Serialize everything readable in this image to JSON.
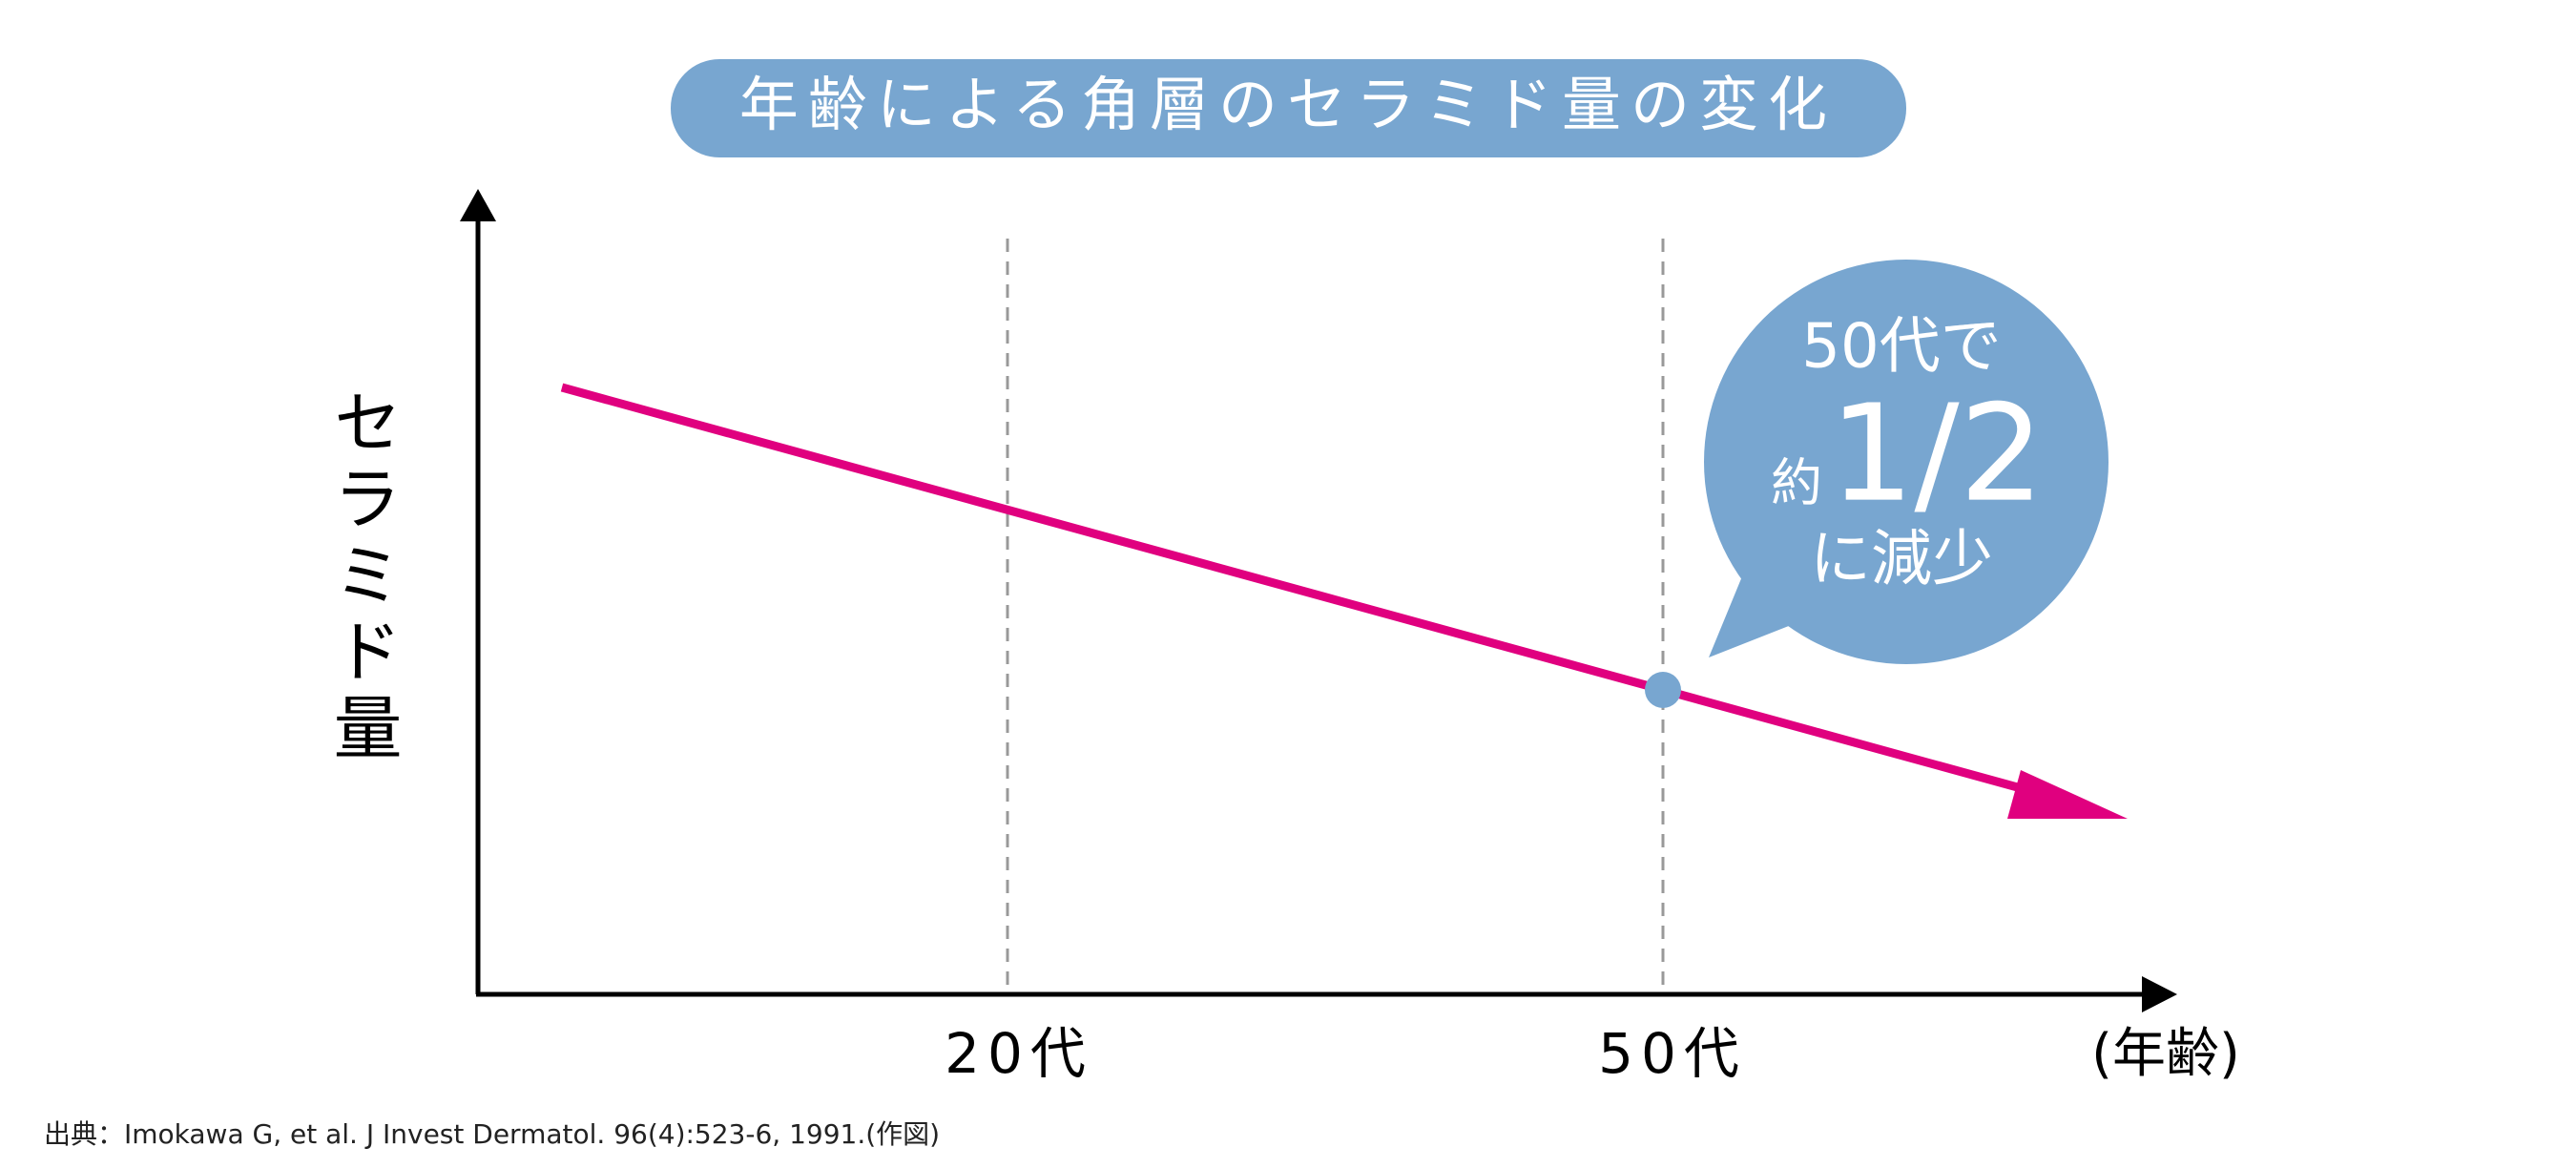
{
  "title": "年齢による角層のセラミド量の変化",
  "y_axis_label": "セラミド量",
  "x_labels": [
    "20代",
    "50代"
  ],
  "x_axis_unit": "(年齢)",
  "callout": {
    "line1": "50代で",
    "prefix": "約",
    "ratio": "1/2",
    "line3": "に減少"
  },
  "source": "出典：Imokawa G, et al. J Invest Dermatol. 96(4):523-6, 1991.(作図)"
}
